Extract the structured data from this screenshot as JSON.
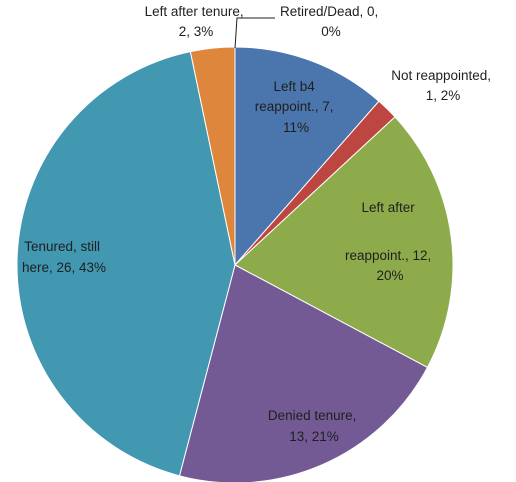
{
  "chart_data": {
    "type": "pie",
    "slices": [
      {
        "label": "Retired/Dead",
        "value": 0,
        "percent_label": "0%",
        "color": "#ffffff"
      },
      {
        "label": "Left b4 reappoint.",
        "value": 7,
        "percent_label": "11%",
        "color": "#4a76ad"
      },
      {
        "label": "Not reappointed",
        "value": 1,
        "percent_label": "2%",
        "color": "#bd4640"
      },
      {
        "label": "Left after reappoint.",
        "value": 12,
        "percent_label": "20%",
        "color": "#8eab4c"
      },
      {
        "label": "Denied tenure",
        "value": 13,
        "percent_label": "21%",
        "color": "#745a94"
      },
      {
        "label": "Tenured, still here",
        "value": 26,
        "percent_label": "43%",
        "color": "#4297b1"
      },
      {
        "label": "Left after tenure",
        "value": 2,
        "percent_label": "3%",
        "color": "#de863c"
      }
    ]
  },
  "labels": [
    {
      "line1": "Retired/Dead, 0,",
      "line2": "0%"
    },
    {
      "line1": "Left b4",
      "line2": "reappoint., 7,",
      "line3": "11%"
    },
    {
      "line1": "Not reappointed,",
      "line2": "1, 2%"
    },
    {
      "line1": "Left after",
      "line2": "reappoint., 12,",
      "line3": "20%"
    },
    {
      "line1": "Denied tenure,",
      "line2": "13, 21%"
    },
    {
      "line1": "Tenured, still",
      "line2": "here, 26, 43%"
    },
    {
      "line1": "Left after tenure,",
      "line2": "2, 3%"
    }
  ]
}
